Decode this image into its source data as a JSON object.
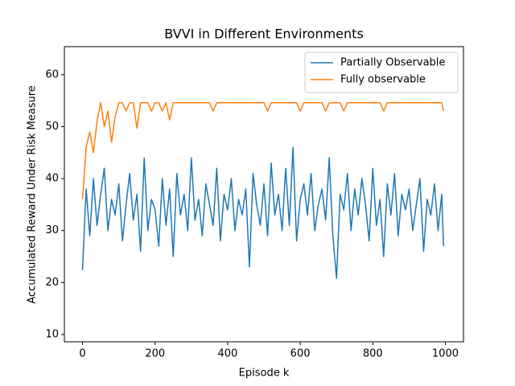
{
  "chart_data": {
    "type": "line",
    "title": "BVVI in Different Environments",
    "xlabel": "Episode k",
    "ylabel": "Accumulated Reward Under Risk Measure",
    "xlim": [
      -50,
      1050
    ],
    "ylim": [
      8.6,
      65.4
    ],
    "xticks": [
      0,
      200,
      400,
      600,
      800,
      1000
    ],
    "yticks": [
      10,
      20,
      30,
      40,
      50,
      60
    ],
    "legend": "upper right",
    "x": [
      0,
      10,
      20,
      30,
      40,
      50,
      60,
      70,
      80,
      90,
      100,
      110,
      120,
      130,
      140,
      150,
      160,
      170,
      180,
      190,
      200,
      210,
      220,
      230,
      240,
      250,
      260,
      270,
      280,
      290,
      300,
      310,
      320,
      330,
      340,
      350,
      360,
      370,
      380,
      390,
      400,
      410,
      420,
      430,
      440,
      450,
      460,
      470,
      480,
      490,
      500,
      510,
      520,
      530,
      540,
      550,
      560,
      570,
      580,
      590,
      600,
      610,
      620,
      630,
      640,
      650,
      660,
      670,
      680,
      690,
      700,
      710,
      720,
      730,
      740,
      750,
      760,
      770,
      780,
      790,
      800,
      810,
      820,
      830,
      840,
      850,
      860,
      870,
      880,
      890,
      900,
      910,
      920,
      930,
      940,
      950,
      960,
      970,
      980,
      990,
      995
    ],
    "series": [
      {
        "name": "Partially Observable",
        "color": "#1f77b4",
        "values": [
          22.4,
          38,
          29,
          40,
          31,
          37,
          42,
          30,
          36,
          33,
          39,
          28,
          35,
          41,
          32,
          37,
          26,
          44,
          30,
          36,
          34,
          27,
          40,
          31,
          38,
          25,
          41,
          33,
          37,
          30,
          44,
          32,
          36,
          29,
          39,
          35,
          31,
          42,
          28,
          37,
          34,
          40,
          30,
          36,
          33,
          38,
          23,
          41,
          35,
          31,
          39,
          29,
          43,
          33,
          37,
          30,
          42,
          31,
          46,
          28,
          36,
          39,
          33,
          41,
          30,
          35,
          38,
          32,
          44,
          29,
          20.8,
          37,
          34,
          41,
          30,
          38,
          33,
          40,
          35,
          28,
          42,
          31,
          36,
          25,
          39,
          33,
          41,
          29,
          37,
          34,
          38,
          30,
          35,
          40,
          26,
          36,
          33,
          39,
          30,
          37,
          27
        ]
      },
      {
        "name": "Fully observable",
        "color": "#ff7f0e",
        "values": [
          36,
          46,
          49,
          45,
          51,
          54.6,
          50,
          53,
          47,
          52,
          54.6,
          54.6,
          53,
          54.6,
          54.6,
          49.7,
          54.6,
          54.6,
          54.6,
          53,
          54.6,
          54.6,
          53,
          54.6,
          51.3,
          54.6,
          54.6,
          54.6,
          54.6,
          54.6,
          54.6,
          54.6,
          54.6,
          54.6,
          54.6,
          54.6,
          53,
          54.6,
          54.6,
          54.6,
          54.6,
          54.6,
          54.6,
          54.6,
          54.6,
          54.6,
          54.6,
          54.6,
          54.6,
          54.6,
          54.6,
          53,
          54.6,
          54.6,
          54.6,
          54.6,
          54.6,
          54.6,
          54.6,
          54.6,
          53,
          54.6,
          54.6,
          54.6,
          54.6,
          54.6,
          54.6,
          53,
          54.6,
          54.6,
          54.6,
          54.6,
          53,
          54.6,
          54.6,
          54.6,
          54.6,
          54.6,
          54.6,
          54.6,
          54.6,
          54.6,
          54.6,
          53,
          54.6,
          54.6,
          54.6,
          54.6,
          54.6,
          54.6,
          54.6,
          54.6,
          54.6,
          54.6,
          54.6,
          54.6,
          54.6,
          54.6,
          54.6,
          54.6,
          53
        ]
      }
    ]
  }
}
